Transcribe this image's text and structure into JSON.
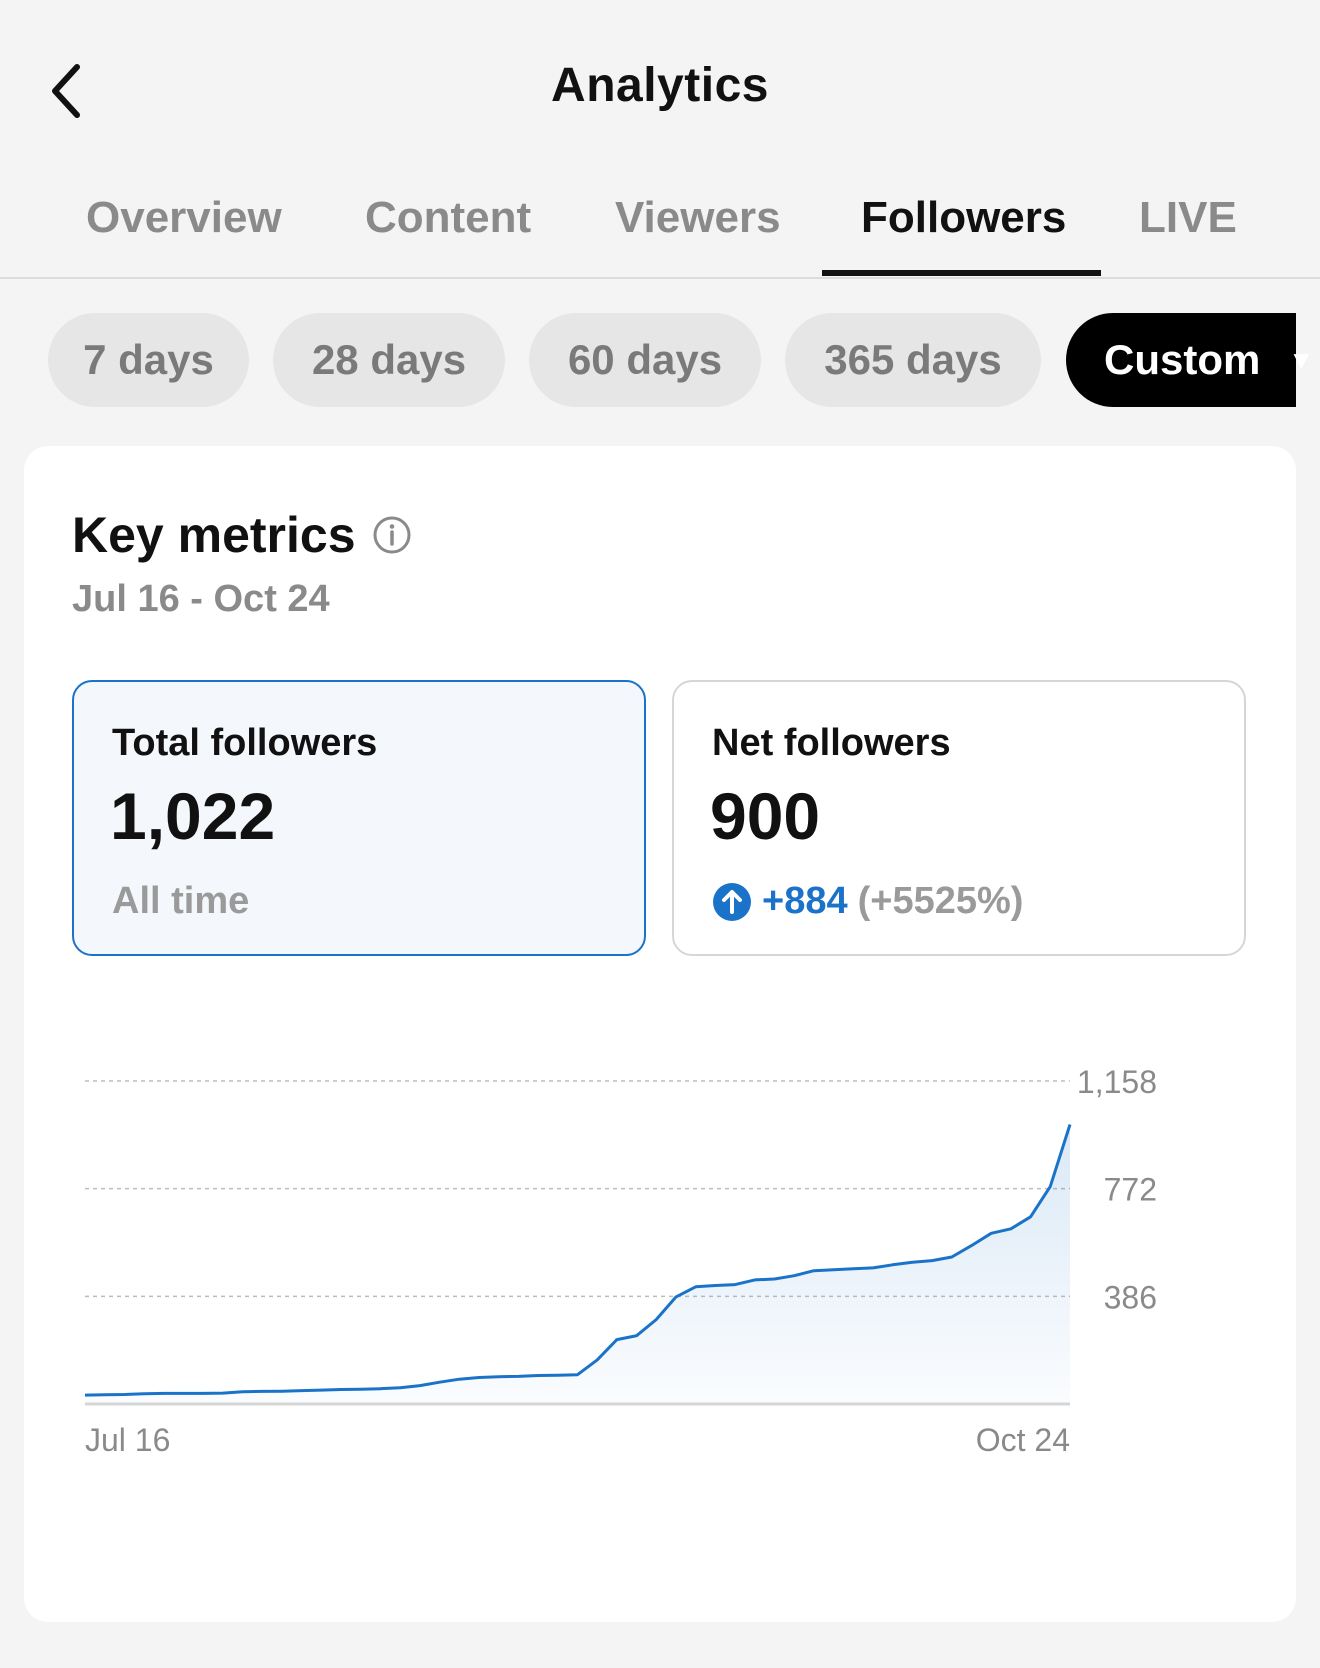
{
  "header": {
    "title": "Analytics",
    "back_icon": "chevron-left-icon"
  },
  "tabs": [
    {
      "label": "Overview",
      "active": false
    },
    {
      "label": "Content",
      "active": false
    },
    {
      "label": "Viewers",
      "active": false
    },
    {
      "label": "Followers",
      "active": true
    },
    {
      "label": "LIVE",
      "active": false
    }
  ],
  "filters": [
    {
      "label": "7 days",
      "selected": false
    },
    {
      "label": "28 days",
      "selected": false
    },
    {
      "label": "60 days",
      "selected": false
    },
    {
      "label": "365 days",
      "selected": false
    },
    {
      "label": "Custom",
      "selected": true
    }
  ],
  "key_metrics": {
    "title": "Key metrics",
    "date_range": "Jul 16 - Oct 24",
    "total_followers": {
      "label": "Total followers",
      "value": "1,022",
      "sub": "All time"
    },
    "net_followers": {
      "label": "Net followers",
      "value": "900",
      "change": "+884",
      "change_pct": "(+5525%)"
    }
  },
  "colors": {
    "accent": "#1a73c9",
    "active_chip_bg": "#000000",
    "chip_bg": "#e6e6e6"
  },
  "chart_data": {
    "type": "area",
    "title": "",
    "xlabel": "",
    "ylabel": "",
    "x_tick_labels": [
      "Jul 16",
      "Oct 24"
    ],
    "y_tick_labels": [
      "1,158",
      "772",
      "386"
    ],
    "y_ticks": [
      1158,
      772,
      386
    ],
    "ylim": [
      0,
      1158
    ],
    "grid": true,
    "x": [
      0,
      2,
      4,
      6,
      8,
      10,
      12,
      14,
      16,
      18,
      20,
      22,
      24,
      26,
      28,
      30,
      32,
      34,
      36,
      38,
      40,
      42,
      44,
      46,
      48,
      50,
      52,
      54,
      56,
      58,
      60,
      62,
      64,
      66,
      68,
      70,
      72,
      74,
      76,
      78,
      80,
      82,
      84,
      86,
      88,
      90,
      92,
      94,
      96,
      98,
      100
    ],
    "y": [
      32,
      33,
      34,
      37,
      38,
      38,
      38,
      39,
      44,
      45,
      46,
      48,
      50,
      52,
      53,
      55,
      58,
      66,
      78,
      89,
      95,
      98,
      99,
      102,
      103,
      105,
      158,
      231,
      245,
      303,
      384,
      420,
      425,
      428,
      445,
      448,
      460,
      478,
      481,
      485,
      488,
      499,
      508,
      514,
      527,
      568,
      612,
      628,
      671,
      780,
      1002
    ],
    "series": [
      {
        "values": [
          32,
          33,
          34,
          37,
          38,
          38,
          38,
          39,
          44,
          45,
          46,
          48,
          50,
          52,
          53,
          55,
          58,
          66,
          78,
          89,
          95,
          98,
          99,
          102,
          103,
          105,
          158,
          231,
          245,
          303,
          384,
          420,
          425,
          428,
          445,
          448,
          460,
          478,
          481,
          485,
          488,
          499,
          508,
          514,
          527,
          568,
          612,
          628,
          671,
          780,
          1002
        ]
      }
    ]
  }
}
